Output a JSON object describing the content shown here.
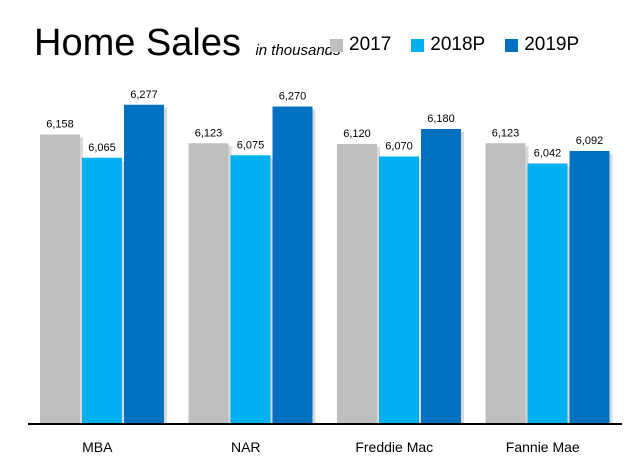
{
  "chart_data": {
    "type": "bar",
    "title": "Home Sales",
    "subtitle": "in thousands",
    "categories": [
      "MBA",
      "NAR",
      "Freddie Mac",
      "Fannie Mae"
    ],
    "series": [
      {
        "name": "2017",
        "color": "#bfbfbf",
        "values": [
          6158,
          6123,
          6120,
          6123
        ],
        "labels": [
          "6,158",
          "6,123",
          "6,120",
          "6,123"
        ]
      },
      {
        "name": "2018P",
        "color": "#00b0f0",
        "values": [
          6065,
          6075,
          6070,
          6042
        ],
        "labels": [
          "6,065",
          "6,075",
          "6,070",
          "6,042"
        ]
      },
      {
        "name": "2019P",
        "color": "#0070c0",
        "values": [
          6277,
          6270,
          6180,
          6092
        ],
        "labels": [
          "6,277",
          "6,270",
          "6,180",
          "6,092"
        ]
      }
    ],
    "ylim": [
      5000,
      6300
    ],
    "grid": false,
    "legend_position": "top-right"
  }
}
